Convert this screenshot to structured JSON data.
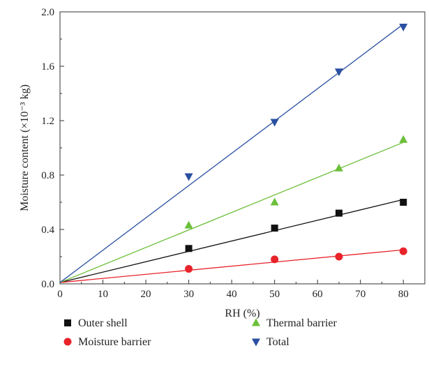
{
  "chart_data": {
    "type": "scatter",
    "xlabel": "RH (%)",
    "ylabel": "Moisture content (×10⁻³ kg)",
    "xlim": [
      0,
      85
    ],
    "ylim": [
      0,
      2.0
    ],
    "xticks": [
      0,
      10,
      20,
      30,
      40,
      50,
      60,
      70,
      80
    ],
    "yticks": [
      0.0,
      0.4,
      0.8,
      1.2,
      1.6,
      2.0
    ],
    "ytick_labels": [
      "0.0",
      "0.4",
      "0.8",
      "1.2",
      "1.6",
      "2.0"
    ],
    "legend_position": "bottom",
    "series": [
      {
        "name": "Outer shell",
        "marker": "square",
        "color": "#111111",
        "x": [
          30,
          50,
          65,
          80
        ],
        "y": [
          0.26,
          0.41,
          0.52,
          0.6
        ],
        "fit": {
          "x": [
            0,
            80
          ],
          "y": [
            0.01,
            0.62
          ]
        }
      },
      {
        "name": "Moisture barrier",
        "marker": "circle",
        "color": "#e8232a",
        "x": [
          30,
          50,
          65,
          80
        ],
        "y": [
          0.11,
          0.18,
          0.2,
          0.24
        ],
        "fit": {
          "x": [
            0,
            80
          ],
          "y": [
            0.01,
            0.25
          ]
        }
      },
      {
        "name": "Thermal barrier",
        "marker": "triangle-up",
        "color": "#6cbf3a",
        "x": [
          30,
          50,
          65,
          80
        ],
        "y": [
          0.43,
          0.6,
          0.85,
          1.06
        ],
        "fit": {
          "x": [
            0,
            80
          ],
          "y": [
            0.01,
            1.04
          ]
        }
      },
      {
        "name": "Total",
        "marker": "triangle-down",
        "color": "#2a4fa0",
        "x": [
          30,
          50,
          65,
          80
        ],
        "y": [
          0.79,
          1.19,
          1.56,
          1.89
        ],
        "fit": {
          "x": [
            0,
            80
          ],
          "y": [
            0.01,
            1.91
          ]
        }
      }
    ]
  }
}
